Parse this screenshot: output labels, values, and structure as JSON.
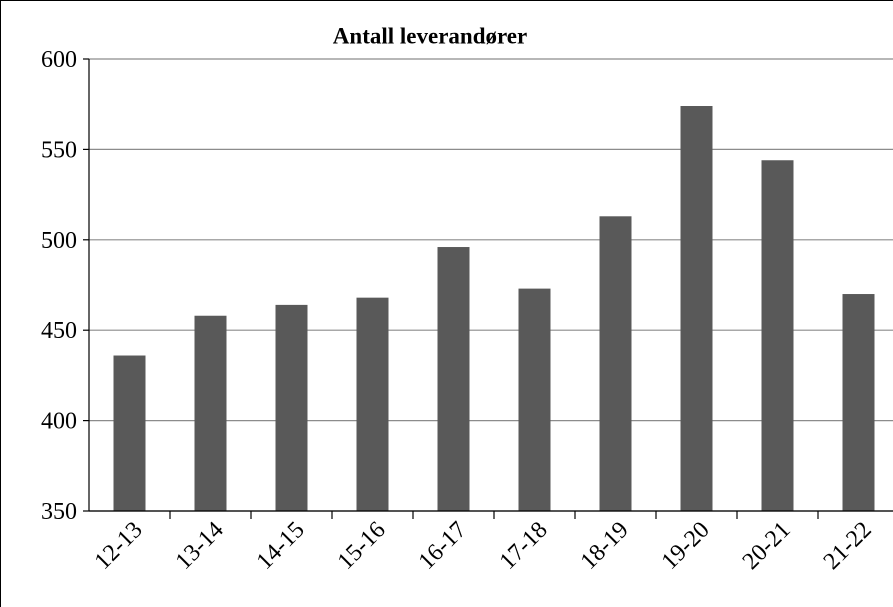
{
  "chart_data": {
    "type": "bar",
    "title": "Antall leverandører",
    "categories": [
      "12-13",
      "13-14",
      "14-15",
      "15-16",
      "16-17",
      "17-18",
      "18-19",
      "19-20",
      "20-21",
      "21-22"
    ],
    "values": [
      436,
      458,
      464,
      468,
      496,
      473,
      513,
      574,
      544,
      470
    ],
    "color": "#595959",
    "ylim": [
      350,
      600
    ],
    "yticks": [
      350,
      400,
      450,
      500,
      550,
      600
    ],
    "grid": true
  }
}
